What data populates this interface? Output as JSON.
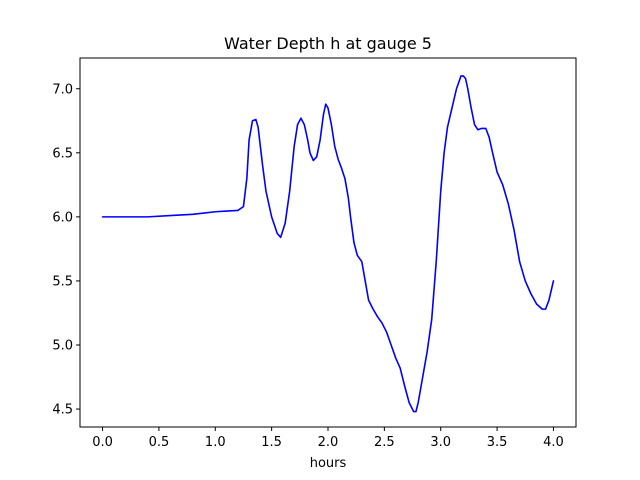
{
  "chart_data": {
    "type": "line",
    "title": "Water Depth h at gauge 5",
    "xlabel": "hours",
    "ylabel": "",
    "xlim": [
      -0.2,
      4.2
    ],
    "ylim": [
      4.36,
      7.24
    ],
    "xticks": [
      0.0,
      0.5,
      1.0,
      1.5,
      2.0,
      2.5,
      3.0,
      3.5,
      4.0
    ],
    "xtick_labels": [
      "0.0",
      "0.5",
      "1.0",
      "1.5",
      "2.0",
      "2.5",
      "3.0",
      "3.5",
      "4.0"
    ],
    "yticks": [
      4.5,
      5.0,
      5.5,
      6.0,
      6.5,
      7.0
    ],
    "ytick_labels": [
      "4.5",
      "5.0",
      "5.5",
      "6.0",
      "6.5",
      "7.0"
    ],
    "grid": false,
    "series": [
      {
        "color": "#0000ff",
        "x": [
          0.0,
          0.2,
          0.4,
          0.6,
          0.8,
          0.9,
          1.0,
          1.1,
          1.2,
          1.25,
          1.28,
          1.3,
          1.33,
          1.36,
          1.38,
          1.42,
          1.45,
          1.5,
          1.55,
          1.58,
          1.62,
          1.66,
          1.7,
          1.73,
          1.76,
          1.79,
          1.82,
          1.84,
          1.87,
          1.9,
          1.93,
          1.96,
          1.98,
          2.0,
          2.03,
          2.06,
          2.09,
          2.12,
          2.15,
          2.18,
          2.2,
          2.23,
          2.26,
          2.3,
          2.33,
          2.36,
          2.4,
          2.44,
          2.48,
          2.52,
          2.56,
          2.6,
          2.64,
          2.68,
          2.72,
          2.76,
          2.78,
          2.8,
          2.82,
          2.85,
          2.88,
          2.92,
          2.96,
          3.0,
          3.03,
          3.06,
          3.1,
          3.14,
          3.18,
          3.2,
          3.22,
          3.24,
          3.27,
          3.3,
          3.33,
          3.36,
          3.4,
          3.43,
          3.46,
          3.5,
          3.55,
          3.6,
          3.65,
          3.7,
          3.75,
          3.8,
          3.85,
          3.9,
          3.93,
          3.96,
          4.0
        ],
        "y": [
          6.0,
          6.0,
          6.0,
          6.01,
          6.02,
          6.03,
          6.04,
          6.045,
          6.05,
          6.08,
          6.3,
          6.6,
          6.75,
          6.76,
          6.7,
          6.4,
          6.2,
          6.0,
          5.87,
          5.84,
          5.95,
          6.2,
          6.55,
          6.72,
          6.77,
          6.72,
          6.6,
          6.5,
          6.44,
          6.47,
          6.6,
          6.8,
          6.88,
          6.85,
          6.72,
          6.55,
          6.45,
          6.38,
          6.3,
          6.15,
          6.0,
          5.8,
          5.7,
          5.65,
          5.5,
          5.35,
          5.28,
          5.22,
          5.17,
          5.1,
          5.0,
          4.9,
          4.82,
          4.68,
          4.55,
          4.48,
          4.48,
          4.55,
          4.65,
          4.8,
          4.95,
          5.2,
          5.65,
          6.2,
          6.5,
          6.7,
          6.85,
          7.0,
          7.1,
          7.1,
          7.08,
          7.0,
          6.85,
          6.72,
          6.68,
          6.69,
          6.69,
          6.62,
          6.5,
          6.35,
          6.25,
          6.1,
          5.9,
          5.65,
          5.5,
          5.4,
          5.32,
          5.28,
          5.28,
          5.35,
          5.5
        ]
      }
    ]
  }
}
